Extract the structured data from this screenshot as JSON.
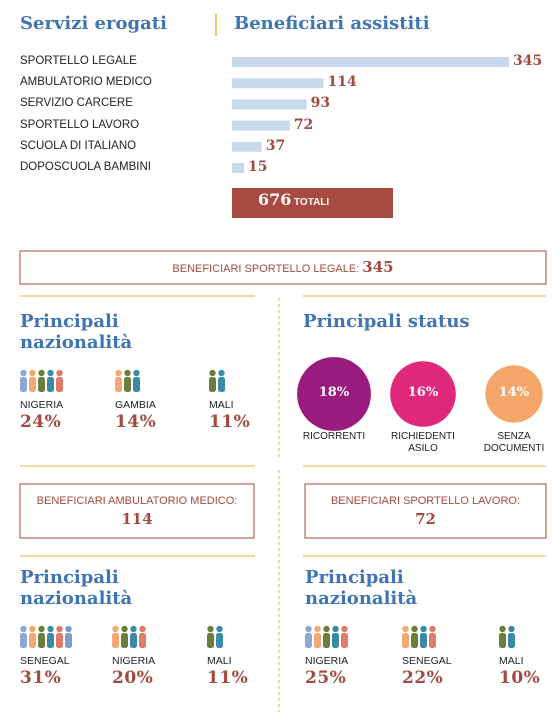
{
  "chart_data": {
    "type": "bar",
    "orientation": "horizontal",
    "title": "Servizi erogati",
    "subtitle": "Beneficiari assistiti",
    "categories": [
      "SPORTELLO LEGALE",
      "AMBULATORIO MEDICO",
      "SERVIZIO CARCERE",
      "SPORTELLO LAVORO",
      "SCUOLA DI ITALIANO",
      "DOPOSCUOLA BAMBINI"
    ],
    "values": [
      345,
      114,
      93,
      72,
      37,
      15
    ],
    "color": "#c9d9ec",
    "total": 676,
    "total_label": "TOTALI"
  },
  "legal": {
    "box": {
      "label": "BENEFICIARI SPORTELLO LEGALE:",
      "value": 345
    },
    "nationalities": {
      "title": "Principali nazionalità",
      "items": [
        {
          "name": "NIGERIA",
          "share": "24%"
        },
        {
          "name": "GAMBIA",
          "share": "14%"
        },
        {
          "name": "MALI",
          "share": "11%"
        }
      ]
    },
    "status": {
      "title": "Principali status",
      "items": [
        {
          "name": "RICORRENTI",
          "value": 18,
          "value_label": "18%",
          "color": "#9b1a7e"
        },
        {
          "name": "RICHIEDENTI ASILO",
          "value": 16,
          "value_label": "16%",
          "color": "#e0287a"
        },
        {
          "name": "SENZA DOCUMENTI",
          "value": 14,
          "value_label": "14%",
          "color": "#f4a56a"
        }
      ]
    }
  },
  "medical": {
    "box": {
      "label": "BENEFICIARI AMBULATORIO MEDICO:",
      "value": 114
    },
    "nationalities": {
      "title": "Principali nazionalità",
      "items": [
        {
          "name": "SENEGAL",
          "share": "31%"
        },
        {
          "name": "NIGERIA",
          "share": "20%"
        },
        {
          "name": "MALI",
          "share": "11%"
        }
      ]
    }
  },
  "work": {
    "box": {
      "label": "BENEFICIARI SPORTELLO LAVORO:",
      "value": 72
    },
    "nationalities": {
      "title": "Principali nazionalità",
      "items": [
        {
          "name": "NIGERIA",
          "share": "25%"
        },
        {
          "name": "SENEGAL",
          "share": "22%"
        },
        {
          "name": "MALI",
          "share": "10%"
        }
      ]
    }
  }
}
